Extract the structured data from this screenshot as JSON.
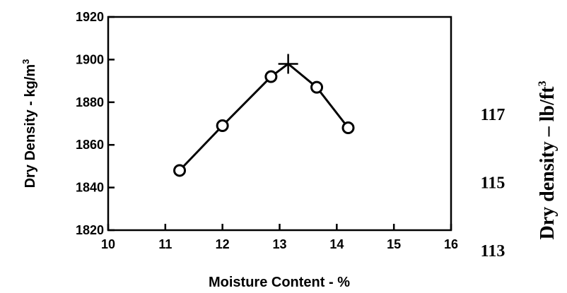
{
  "chart_data": {
    "type": "line",
    "xlabel": "Moisture Content - %",
    "ylabel": "Dry Density - kg/m",
    "ylabel_superscript": "3",
    "xlim": [
      10,
      16
    ],
    "ylim": [
      1820,
      1920
    ],
    "x_ticks": [
      "10",
      "11",
      "12",
      "13",
      "14",
      "15",
      "16"
    ],
    "y_ticks": [
      "1820",
      "1840",
      "1860",
      "1880",
      "1900",
      "1920"
    ],
    "secondary_ylabel": "Dry density – lb/ft",
    "secondary_ylabel_superscript": "3",
    "secondary_y_ticks": [
      {
        "label": "117",
        "value": 117
      },
      {
        "label": "115",
        "value": 115
      },
      {
        "label": "113",
        "value": 113
      }
    ],
    "secondary_ylim": [
      113.6,
      119.86
    ],
    "series": [
      {
        "points": [
          {
            "x": 11.25,
            "y": 1848
          },
          {
            "x": 12.0,
            "y": 1869
          },
          {
            "x": 12.85,
            "y": 1892
          },
          {
            "x": 13.65,
            "y": 1887
          },
          {
            "x": 14.2,
            "y": 1868
          }
        ]
      }
    ],
    "curve": [
      {
        "x": 11.25,
        "y": 1848
      },
      {
        "x": 12.0,
        "y": 1869
      },
      {
        "x": 12.85,
        "y": 1892
      },
      {
        "x": 13.15,
        "y": 1898
      },
      {
        "x": 13.65,
        "y": 1887
      },
      {
        "x": 14.2,
        "y": 1868
      }
    ],
    "peak": {
      "x": 13.15,
      "y": 1898
    }
  }
}
